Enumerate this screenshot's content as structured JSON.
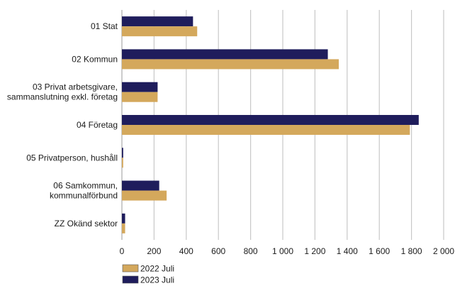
{
  "chart_data": {
    "type": "bar",
    "orientation": "horizontal",
    "categories": [
      [
        "01 Stat"
      ],
      [
        "02 Kommun"
      ],
      [
        "03 Privat arbetsgivare,",
        "sammanslutning exkl. företag"
      ],
      [
        "04 Företag"
      ],
      [
        "05 Privatperson, hushåll"
      ],
      [
        "06 Samkommun,",
        "kommunalförbund"
      ],
      [
        "ZZ Okänd sektor"
      ]
    ],
    "series": [
      {
        "name": "2023 Juli",
        "color": "#1f1d5c",
        "values": [
          442,
          1280,
          222,
          1845,
          8,
          232,
          20
        ]
      },
      {
        "name": "2022 Juli",
        "color": "#d4a85c",
        "values": [
          468,
          1348,
          222,
          1790,
          8,
          278,
          20
        ]
      }
    ],
    "xlim": [
      0,
      2000
    ],
    "xticks": [
      0,
      200,
      400,
      600,
      800,
      1000,
      1200,
      1400,
      1600,
      1800,
      2000
    ],
    "xtick_labels": [
      "0",
      "200",
      "400",
      "600",
      "800",
      "1 000",
      "1 200",
      "1 400",
      "1 600",
      "1 800",
      "2 000"
    ],
    "grid": "vertical",
    "legend_position": "bottom-left",
    "legend": [
      "2022 Juli",
      "2023 Juli"
    ]
  }
}
